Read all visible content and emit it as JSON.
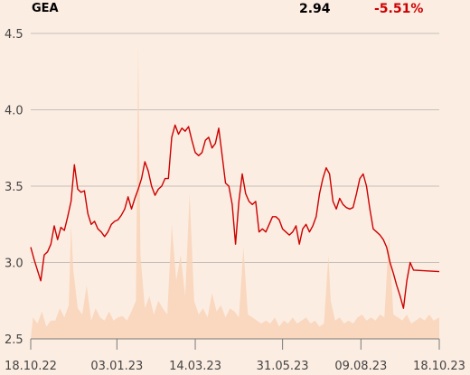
{
  "header": {
    "ticker": "GEA",
    "price": "2.94",
    "change": "-5.51%"
  },
  "colors": {
    "background": "#fcede2",
    "line": "#cc0000",
    "volume": "#f8d3b8",
    "grid": "#b5b0aa",
    "axis": "#7a7a7a",
    "text": "#444444"
  },
  "chart_data": {
    "type": "line",
    "ylim": [
      2.5,
      4.5
    ],
    "yticks": [
      {
        "value": 2.5,
        "label": "2.5"
      },
      {
        "value": 3.0,
        "label": "3.0"
      },
      {
        "value": 3.5,
        "label": "3.5"
      },
      {
        "value": 4.0,
        "label": "4.0"
      },
      {
        "value": 4.5,
        "label": "4.5"
      }
    ],
    "xlim": [
      "2022-10-18",
      "2023-10-18"
    ],
    "xticks": [
      {
        "date": "2022-10-18",
        "label": "18.10.22"
      },
      {
        "date": "2023-01-03",
        "label": "03.01.23"
      },
      {
        "date": "2023-03-14",
        "label": "14.03.23"
      },
      {
        "date": "2023-05-31",
        "label": "31.05.23"
      },
      {
        "date": "2023-08-09",
        "label": "09.08.23"
      },
      {
        "date": "2023-10-18",
        "label": "18.10.23"
      }
    ],
    "grid": true,
    "series": [
      {
        "values": [
          [
            "2022-10-18",
            3.1
          ],
          [
            "2022-10-21",
            3.02
          ],
          [
            "2022-10-24",
            2.95
          ],
          [
            "2022-10-27",
            2.88
          ],
          [
            "2022-10-30",
            3.05
          ],
          [
            "2022-11-02",
            3.07
          ],
          [
            "2022-11-05",
            3.12
          ],
          [
            "2022-11-08",
            3.24
          ],
          [
            "2022-11-11",
            3.15
          ],
          [
            "2022-11-14",
            3.23
          ],
          [
            "2022-11-17",
            3.21
          ],
          [
            "2022-11-20",
            3.3
          ],
          [
            "2022-11-23",
            3.4
          ],
          [
            "2022-11-26",
            3.64
          ],
          [
            "2022-11-29",
            3.48
          ],
          [
            "2022-12-02",
            3.46
          ],
          [
            "2022-12-05",
            3.47
          ],
          [
            "2022-12-08",
            3.32
          ],
          [
            "2022-12-11",
            3.25
          ],
          [
            "2022-12-14",
            3.27
          ],
          [
            "2022-12-17",
            3.22
          ],
          [
            "2022-12-20",
            3.2
          ],
          [
            "2022-12-23",
            3.17
          ],
          [
            "2022-12-26",
            3.2
          ],
          [
            "2022-12-29",
            3.25
          ],
          [
            "2023-01-01",
            3.27
          ],
          [
            "2023-01-04",
            3.28
          ],
          [
            "2023-01-07",
            3.31
          ],
          [
            "2023-01-10",
            3.35
          ],
          [
            "2023-01-13",
            3.43
          ],
          [
            "2023-01-16",
            3.35
          ],
          [
            "2023-01-19",
            3.42
          ],
          [
            "2023-01-22",
            3.48
          ],
          [
            "2023-01-25",
            3.55
          ],
          [
            "2023-01-28",
            3.66
          ],
          [
            "2023-01-31",
            3.6
          ],
          [
            "2023-02-03",
            3.5
          ],
          [
            "2023-02-06",
            3.44
          ],
          [
            "2023-02-09",
            3.48
          ],
          [
            "2023-02-12",
            3.5
          ],
          [
            "2023-02-15",
            3.55
          ],
          [
            "2023-02-18",
            3.55
          ],
          [
            "2023-02-21",
            3.82
          ],
          [
            "2023-02-24",
            3.9
          ],
          [
            "2023-02-27",
            3.84
          ],
          [
            "2023-03-02",
            3.88
          ],
          [
            "2023-03-05",
            3.86
          ],
          [
            "2023-03-08",
            3.89
          ],
          [
            "2023-03-11",
            3.8
          ],
          [
            "2023-03-14",
            3.72
          ],
          [
            "2023-03-17",
            3.7
          ],
          [
            "2023-03-20",
            3.72
          ],
          [
            "2023-03-23",
            3.8
          ],
          [
            "2023-03-26",
            3.82
          ],
          [
            "2023-03-29",
            3.75
          ],
          [
            "2023-04-01",
            3.78
          ],
          [
            "2023-04-04",
            3.88
          ],
          [
            "2023-04-07",
            3.7
          ],
          [
            "2023-04-10",
            3.52
          ],
          [
            "2023-04-13",
            3.5
          ],
          [
            "2023-04-16",
            3.38
          ],
          [
            "2023-04-19",
            3.12
          ],
          [
            "2023-04-22",
            3.4
          ],
          [
            "2023-04-25",
            3.58
          ],
          [
            "2023-04-28",
            3.45
          ],
          [
            "2023-05-01",
            3.4
          ],
          [
            "2023-05-04",
            3.38
          ],
          [
            "2023-05-07",
            3.4
          ],
          [
            "2023-05-10",
            3.2
          ],
          [
            "2023-05-13",
            3.22
          ],
          [
            "2023-05-16",
            3.2
          ],
          [
            "2023-05-19",
            3.25
          ],
          [
            "2023-05-22",
            3.3
          ],
          [
            "2023-05-25",
            3.3
          ],
          [
            "2023-05-28",
            3.28
          ],
          [
            "2023-05-31",
            3.22
          ],
          [
            "2023-06-03",
            3.2
          ],
          [
            "2023-06-06",
            3.18
          ],
          [
            "2023-06-09",
            3.2
          ],
          [
            "2023-06-12",
            3.24
          ],
          [
            "2023-06-15",
            3.12
          ],
          [
            "2023-06-18",
            3.22
          ],
          [
            "2023-06-21",
            3.25
          ],
          [
            "2023-06-24",
            3.2
          ],
          [
            "2023-06-27",
            3.24
          ],
          [
            "2023-06-30",
            3.3
          ],
          [
            "2023-07-03",
            3.45
          ],
          [
            "2023-07-06",
            3.55
          ],
          [
            "2023-07-09",
            3.62
          ],
          [
            "2023-07-12",
            3.58
          ],
          [
            "2023-07-15",
            3.4
          ],
          [
            "2023-07-18",
            3.35
          ],
          [
            "2023-07-21",
            3.42
          ],
          [
            "2023-07-24",
            3.38
          ],
          [
            "2023-07-27",
            3.36
          ],
          [
            "2023-07-30",
            3.35
          ],
          [
            "2023-08-02",
            3.36
          ],
          [
            "2023-08-05",
            3.45
          ],
          [
            "2023-08-08",
            3.55
          ],
          [
            "2023-08-11",
            3.58
          ],
          [
            "2023-08-14",
            3.5
          ],
          [
            "2023-08-17",
            3.35
          ],
          [
            "2023-08-20",
            3.22
          ],
          [
            "2023-08-23",
            3.2
          ],
          [
            "2023-08-26",
            3.18
          ],
          [
            "2023-08-29",
            3.15
          ],
          [
            "2023-09-01",
            3.1
          ],
          [
            "2023-09-04",
            3.0
          ],
          [
            "2023-09-07",
            2.93
          ],
          [
            "2023-09-10",
            2.85
          ],
          [
            "2023-09-13",
            2.78
          ],
          [
            "2023-09-16",
            2.7
          ],
          [
            "2023-09-19",
            2.88
          ],
          [
            "2023-09-22",
            3.0
          ],
          [
            "2023-09-25",
            2.95
          ],
          [
            "2023-10-18",
            2.94
          ]
        ]
      }
    ],
    "volume": [
      [
        "2022-10-20",
        2.64
      ],
      [
        "2022-10-24",
        2.6
      ],
      [
        "2022-10-28",
        2.68
      ],
      [
        "2022-11-01",
        2.58
      ],
      [
        "2022-11-05",
        2.62
      ],
      [
        "2022-11-09",
        2.62
      ],
      [
        "2022-11-13",
        2.7
      ],
      [
        "2022-11-17",
        2.64
      ],
      [
        "2022-11-21",
        2.72
      ],
      [
        "2022-11-23",
        3.25
      ],
      [
        "2022-11-25",
        2.95
      ],
      [
        "2022-11-29",
        2.7
      ],
      [
        "2022-12-03",
        2.66
      ],
      [
        "2022-12-07",
        2.85
      ],
      [
        "2022-12-11",
        2.62
      ],
      [
        "2022-12-15",
        2.7
      ],
      [
        "2022-12-19",
        2.64
      ],
      [
        "2022-12-23",
        2.62
      ],
      [
        "2022-12-27",
        2.68
      ],
      [
        "2022-12-31",
        2.62
      ],
      [
        "2023-01-04",
        2.64
      ],
      [
        "2023-01-08",
        2.65
      ],
      [
        "2023-01-12",
        2.62
      ],
      [
        "2023-01-16",
        2.68
      ],
      [
        "2023-01-20",
        2.75
      ],
      [
        "2023-01-22",
        4.42
      ],
      [
        "2023-01-24",
        3.05
      ],
      [
        "2023-01-28",
        2.7
      ],
      [
        "2023-02-01",
        2.78
      ],
      [
        "2023-02-05",
        2.66
      ],
      [
        "2023-02-09",
        2.75
      ],
      [
        "2023-02-13",
        2.7
      ],
      [
        "2023-02-17",
        2.66
      ],
      [
        "2023-02-21",
        3.25
      ],
      [
        "2023-02-25",
        2.88
      ],
      [
        "2023-03-01",
        3.05
      ],
      [
        "2023-03-05",
        2.78
      ],
      [
        "2023-03-09",
        3.45
      ],
      [
        "2023-03-13",
        2.75
      ],
      [
        "2023-03-17",
        2.66
      ],
      [
        "2023-03-21",
        2.7
      ],
      [
        "2023-03-25",
        2.64
      ],
      [
        "2023-03-29",
        2.8
      ],
      [
        "2023-04-02",
        2.68
      ],
      [
        "2023-04-06",
        2.72
      ],
      [
        "2023-04-10",
        2.64
      ],
      [
        "2023-04-14",
        2.7
      ],
      [
        "2023-04-18",
        2.68
      ],
      [
        "2023-04-22",
        2.64
      ],
      [
        "2023-04-26",
        3.1
      ],
      [
        "2023-04-30",
        2.66
      ],
      [
        "2023-05-04",
        2.64
      ],
      [
        "2023-05-08",
        2.62
      ],
      [
        "2023-05-12",
        2.6
      ],
      [
        "2023-05-16",
        2.62
      ],
      [
        "2023-05-20",
        2.6
      ],
      [
        "2023-05-24",
        2.64
      ],
      [
        "2023-05-28",
        2.58
      ],
      [
        "2023-06-01",
        2.62
      ],
      [
        "2023-06-05",
        2.6
      ],
      [
        "2023-06-09",
        2.64
      ],
      [
        "2023-06-13",
        2.6
      ],
      [
        "2023-06-17",
        2.62
      ],
      [
        "2023-06-21",
        2.64
      ],
      [
        "2023-06-25",
        2.6
      ],
      [
        "2023-06-29",
        2.62
      ],
      [
        "2023-07-03",
        2.58
      ],
      [
        "2023-07-07",
        2.6
      ],
      [
        "2023-07-11",
        3.05
      ],
      [
        "2023-07-13",
        2.75
      ],
      [
        "2023-07-17",
        2.62
      ],
      [
        "2023-07-21",
        2.64
      ],
      [
        "2023-07-25",
        2.6
      ],
      [
        "2023-07-29",
        2.62
      ],
      [
        "2023-08-02",
        2.6
      ],
      [
        "2023-08-06",
        2.64
      ],
      [
        "2023-08-10",
        2.66
      ],
      [
        "2023-08-14",
        2.62
      ],
      [
        "2023-08-18",
        2.64
      ],
      [
        "2023-08-22",
        2.62
      ],
      [
        "2023-08-26",
        2.66
      ],
      [
        "2023-08-30",
        2.64
      ],
      [
        "2023-09-03",
        3.18
      ],
      [
        "2023-09-07",
        2.66
      ],
      [
        "2023-09-11",
        2.64
      ],
      [
        "2023-09-15",
        2.62
      ],
      [
        "2023-09-19",
        2.66
      ],
      [
        "2023-09-23",
        2.6
      ],
      [
        "2023-09-27",
        2.62
      ],
      [
        "2023-10-01",
        2.64
      ],
      [
        "2023-10-05",
        2.62
      ],
      [
        "2023-10-09",
        2.66
      ],
      [
        "2023-10-13",
        2.62
      ],
      [
        "2023-10-18",
        2.64
      ]
    ]
  }
}
